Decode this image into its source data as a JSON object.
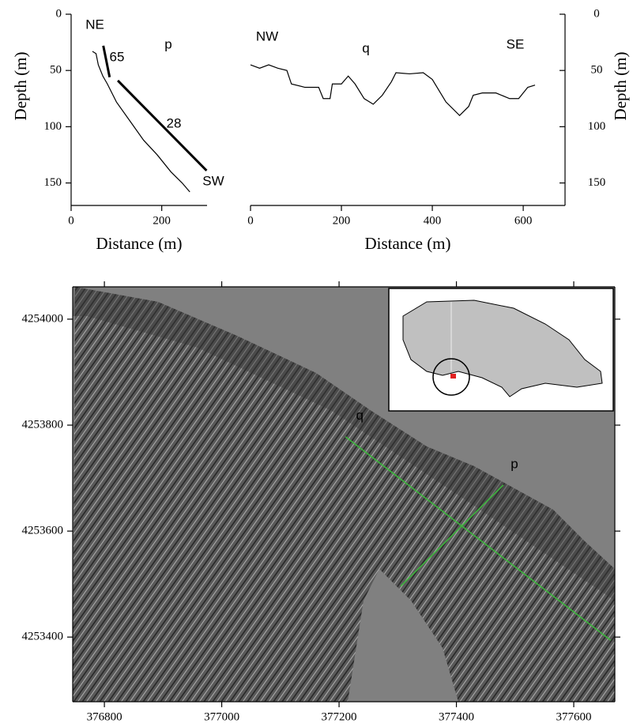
{
  "chart_data": [
    {
      "type": "line",
      "xlabel": "Distance (m)",
      "ylabel": "Depth (m)",
      "annotations": [
        "NE",
        "p",
        "SW",
        "65",
        "28"
      ],
      "xlim": [
        0,
        300
      ],
      "xticks": [
        0,
        200
      ],
      "ylim": [
        170,
        0
      ],
      "yticks": [
        0,
        50,
        100,
        150
      ],
      "series": [
        {
          "color": "#000000",
          "x": [
            47,
            55,
            60,
            70,
            80,
            100,
            130,
            160,
            190,
            220,
            245,
            262
          ],
          "values": [
            33,
            35,
            45,
            55,
            62,
            78,
            95,
            112,
            125,
            140,
            150,
            158
          ]
        },
        {
          "color": "#000000",
          "x": [
            71,
            85
          ],
          "values": [
            28,
            56
          ]
        },
        {
          "color": "#000000",
          "x": [
            103,
            299
          ],
          "values": [
            59,
            139
          ]
        }
      ]
    },
    {
      "type": "line",
      "xlabel": "Distance (m)",
      "ylabel": "Depth (m)",
      "annotations": [
        "NW",
        "q",
        "SE"
      ],
      "xlim": [
        0,
        692
      ],
      "xticks": [
        0,
        200,
        400,
        600
      ],
      "ylim": [
        170,
        0
      ],
      "yticks": [
        0,
        50,
        100,
        150
      ],
      "series": [
        {
          "color": "#000000",
          "x": [
            0,
            20,
            40,
            60,
            80,
            90,
            120,
            150,
            160,
            175,
            180,
            200,
            215,
            230,
            250,
            270,
            290,
            310,
            320,
            350,
            380,
            400,
            430,
            460,
            480,
            490,
            510,
            540,
            570,
            590,
            600,
            610,
            626
          ],
          "values": [
            45,
            48,
            45,
            48,
            50,
            62,
            65,
            65,
            75,
            75,
            62,
            62,
            55,
            62,
            75,
            80,
            72,
            60,
            52,
            53,
            52,
            58,
            78,
            90,
            82,
            72,
            70,
            70,
            75,
            75,
            70,
            65,
            63
          ]
        }
      ]
    },
    {
      "type": "map",
      "xlim": [
        376746,
        377670
      ],
      "xticks": [
        376800,
        377000,
        377200,
        377400,
        377600
      ],
      "ylim": [
        4253278,
        4254061
      ],
      "yticks": [
        4253400,
        4253600,
        4253800,
        4254000
      ],
      "series": [
        {
          "name": "q",
          "color": "#3db53d",
          "x": [
            377211,
            377663
          ],
          "values": [
            4253778,
            4253394
          ]
        },
        {
          "name": "p",
          "color": "#3db53d",
          "x": [
            377305,
            377480
          ],
          "values": [
            4253496,
            4253687
          ]
        }
      ]
    }
  ]
}
